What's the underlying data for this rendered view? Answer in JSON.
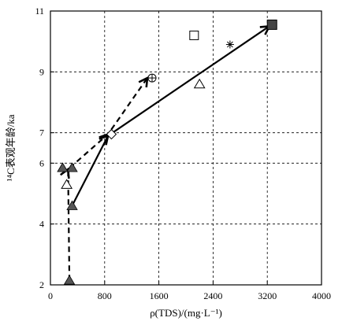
{
  "chart_data": {
    "type": "scatter",
    "xlabel": "ρ(TDS)/(mg·L⁻¹)",
    "ylabel": "¹⁴C表观年龄/ka",
    "xlim": [
      0,
      4000
    ],
    "ylim": [
      2,
      11
    ],
    "x_ticks": [
      0,
      800,
      1600,
      2400,
      3200,
      4000
    ],
    "y_ticks": [
      2,
      4,
      6,
      7,
      9,
      11
    ],
    "x_tick_labels": [
      "0",
      "800",
      "1600",
      "2400",
      "3200",
      "4000"
    ],
    "y_tick_labels": [
      "2",
      "4",
      "6",
      "7",
      "9",
      "11"
    ],
    "grid": true,
    "points": [
      {
        "marker": "triangle-filled",
        "x": 280,
        "y": 2.15
      },
      {
        "marker": "triangle-filled",
        "x": 320,
        "y": 4.6
      },
      {
        "marker": "triangle-filled",
        "x": 180,
        "y": 5.85
      },
      {
        "marker": "triangle-filled",
        "x": 320,
        "y": 5.85
      },
      {
        "marker": "triangle-open",
        "x": 240,
        "y": 5.3
      },
      {
        "marker": "diamond-open",
        "x": 900,
        "y": 6.95
      },
      {
        "marker": "circle-plus",
        "x": 1500,
        "y": 8.8
      },
      {
        "marker": "triangle-open",
        "x": 2200,
        "y": 8.6
      },
      {
        "marker": "square-open",
        "x": 2120,
        "y": 10.2
      },
      {
        "marker": "asterisk",
        "x": 2650,
        "y": 9.9
      },
      {
        "marker": "square-filled",
        "x": 3270,
        "y": 10.55
      }
    ],
    "arrows": [
      {
        "style": "solid",
        "path": [
          [
            320,
            4.6
          ],
          [
            850,
            6.9
          ],
          [
            3230,
            10.5
          ]
        ]
      },
      {
        "style": "dashed",
        "path": [
          [
            280,
            2.15
          ],
          [
            260,
            5.8
          ],
          [
            850,
            6.95
          ],
          [
            1430,
            8.8
          ]
        ]
      }
    ]
  },
  "colors": {
    "axis": "#000000",
    "fill_marker": "#555555",
    "square_fill": "#444444"
  }
}
